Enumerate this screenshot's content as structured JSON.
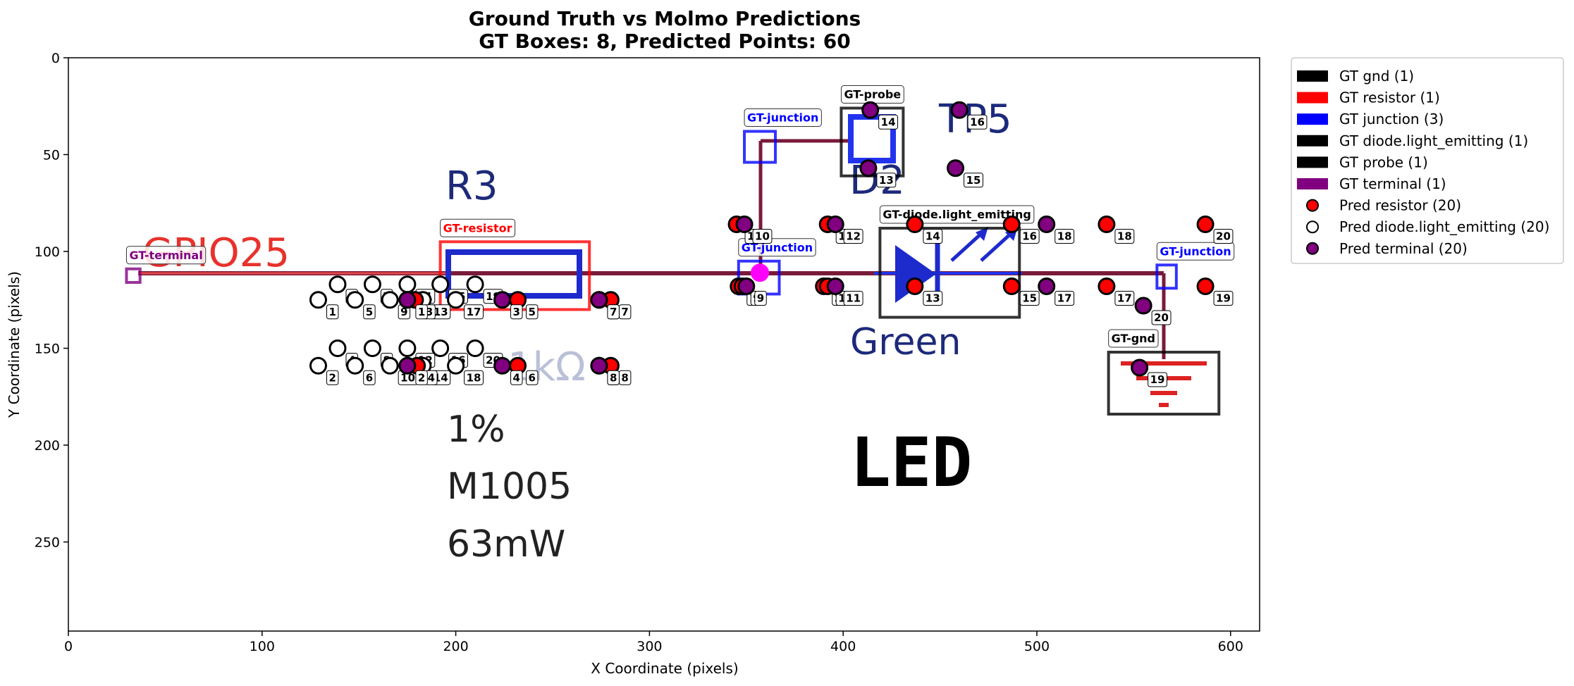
{
  "chart_data": {
    "type": "scatter",
    "title_line1": "Ground Truth vs Molmo Predictions",
    "title_line2": "GT Boxes: 8, Predicted Points: 60",
    "xlabel": "X Coordinate (pixels)",
    "ylabel": "Y Coordinate (pixels)",
    "xlim": [
      0,
      615
    ],
    "ylim": [
      296,
      0
    ],
    "xticks": [
      0,
      100,
      200,
      300,
      400,
      500,
      600
    ],
    "yticks": [
      0,
      50,
      100,
      150,
      200,
      250
    ],
    "legend_position": "outside top-right",
    "background_image_text": {
      "r3": "R3",
      "gpio": "GPIO25",
      "value": "1%",
      "package": "M1005",
      "power": "63mW",
      "d2": "D2",
      "tp5": "TP5",
      "color": "Green",
      "led": "LED",
      "partial": "1kΩ"
    },
    "gt_boxes": [
      {
        "label": "GT-terminal",
        "class": "terminal",
        "color": "#800080",
        "x1": 30,
        "y1": 109,
        "x2": 37,
        "y2": 116
      },
      {
        "label": "GT-resistor",
        "class": "resistor",
        "color": "#ff0000",
        "x1": 192,
        "y1": 95,
        "x2": 269,
        "y2": 130
      },
      {
        "label": "GT-junction",
        "class": "junction",
        "color": "#0000ff",
        "x1": 349,
        "y1": 38,
        "x2": 365,
        "y2": 54
      },
      {
        "label": "GT-probe",
        "class": "probe",
        "color": "#000000",
        "x1": 399,
        "y1": 26,
        "x2": 431,
        "y2": 61
      },
      {
        "label": "GT-junction",
        "class": "junction",
        "color": "#0000ff",
        "x1": 346,
        "y1": 105,
        "x2": 367,
        "y2": 122
      },
      {
        "label": "GT-diode.light_emitting",
        "class": "diode.light_emitting",
        "color": "#000000",
        "x1": 419,
        "y1": 88,
        "x2": 491,
        "y2": 134
      },
      {
        "label": "GT-junction",
        "class": "junction",
        "color": "#0000ff",
        "x1": 562,
        "y1": 107,
        "x2": 572,
        "y2": 119
      },
      {
        "label": "GT-gnd",
        "class": "gnd",
        "color": "#000000",
        "x1": 537,
        "y1": 152,
        "x2": 594,
        "y2": 184
      }
    ],
    "pred_resistor": [
      {
        "n": 1,
        "x": 346,
        "y": 118
      },
      {
        "n": 2,
        "x": 390,
        "y": 118
      },
      {
        "n": 3,
        "x": 179,
        "y": 125
      },
      {
        "n": 4,
        "x": 180,
        "y": 159
      },
      {
        "n": 5,
        "x": 232,
        "y": 125
      },
      {
        "n": 6,
        "x": 232,
        "y": 159
      },
      {
        "n": 7,
        "x": 280,
        "y": 125
      },
      {
        "n": 8,
        "x": 280,
        "y": 159
      },
      {
        "n": 9,
        "x": 348,
        "y": 118
      },
      {
        "n": 10,
        "x": 345,
        "y": 86
      },
      {
        "n": 11,
        "x": 392,
        "y": 118
      },
      {
        "n": 12,
        "x": 392,
        "y": 86
      },
      {
        "n": 13,
        "x": 437,
        "y": 118
      },
      {
        "n": 14,
        "x": 437,
        "y": 86
      },
      {
        "n": 15,
        "x": 487,
        "y": 118
      },
      {
        "n": 16,
        "x": 487,
        "y": 86
      },
      {
        "n": 17,
        "x": 536,
        "y": 118
      },
      {
        "n": 18,
        "x": 536,
        "y": 86
      },
      {
        "n": 19,
        "x": 587,
        "y": 118
      },
      {
        "n": 20,
        "x": 587,
        "y": 86
      }
    ],
    "pred_diode_light_emitting": [
      {
        "n": 1,
        "x": 129,
        "y": 125
      },
      {
        "n": 2,
        "x": 129,
        "y": 159
      },
      {
        "n": 3,
        "x": 139,
        "y": 117
      },
      {
        "n": 4,
        "x": 139,
        "y": 150
      },
      {
        "n": 5,
        "x": 148,
        "y": 125
      },
      {
        "n": 6,
        "x": 148,
        "y": 159
      },
      {
        "n": 7,
        "x": 157,
        "y": 117
      },
      {
        "n": 8,
        "x": 157,
        "y": 150
      },
      {
        "n": 9,
        "x": 166,
        "y": 125
      },
      {
        "n": 10,
        "x": 166,
        "y": 159
      },
      {
        "n": 11,
        "x": 175,
        "y": 117
      },
      {
        "n": 12,
        "x": 175,
        "y": 150
      },
      {
        "n": 13,
        "x": 183,
        "y": 125
      },
      {
        "n": 14,
        "x": 183,
        "y": 159
      },
      {
        "n": 15,
        "x": 192,
        "y": 117
      },
      {
        "n": 16,
        "x": 192,
        "y": 150
      },
      {
        "n": 17,
        "x": 200,
        "y": 125
      },
      {
        "n": 18,
        "x": 200,
        "y": 159
      },
      {
        "n": 19,
        "x": 210,
        "y": 117
      },
      {
        "n": 20,
        "x": 210,
        "y": 150
      }
    ],
    "pred_terminal": [
      {
        "n": 1,
        "x": 175,
        "y": 125
      },
      {
        "n": 2,
        "x": 175,
        "y": 159
      },
      {
        "n": 3,
        "x": 224,
        "y": 125
      },
      {
        "n": 4,
        "x": 224,
        "y": 159
      },
      {
        "n": 5,
        "x": 274,
        "y": 125
      },
      {
        "n": 6,
        "x": 274,
        "y": 159
      },
      {
        "n": 7,
        "x": 274,
        "y": 125
      },
      {
        "n": 8,
        "x": 274,
        "y": 159
      },
      {
        "n": 9,
        "x": 350,
        "y": 118
      },
      {
        "n": 10,
        "x": 349,
        "y": 86
      },
      {
        "n": 11,
        "x": 396,
        "y": 118
      },
      {
        "n": 12,
        "x": 396,
        "y": 86
      },
      {
        "n": 13,
        "x": 413,
        "y": 57
      },
      {
        "n": 14,
        "x": 414,
        "y": 27
      },
      {
        "n": 15,
        "x": 458,
        "y": 57
      },
      {
        "n": 16,
        "x": 460,
        "y": 27
      },
      {
        "n": 17,
        "x": 505,
        "y": 118
      },
      {
        "n": 18,
        "x": 505,
        "y": 86
      },
      {
        "n": 19,
        "x": 553,
        "y": 160
      },
      {
        "n": 20,
        "x": 555,
        "y": 128
      }
    ],
    "junction_marker": {
      "x": 357,
      "y": 111,
      "color": "#ff00ff"
    },
    "legend": [
      {
        "label": "GT gnd (1)",
        "kind": "box",
        "color": "#000000"
      },
      {
        "label": "GT resistor (1)",
        "kind": "box",
        "color": "#ff0000"
      },
      {
        "label": "GT junction (3)",
        "kind": "box",
        "color": "#0000ff"
      },
      {
        "label": "GT diode.light_emitting (1)",
        "kind": "box",
        "color": "#000000"
      },
      {
        "label": "GT probe (1)",
        "kind": "box",
        "color": "#000000"
      },
      {
        "label": "GT terminal (1)",
        "kind": "box",
        "color": "#800080"
      },
      {
        "label": "Pred resistor (20)",
        "kind": "point",
        "color": "#ff0000"
      },
      {
        "label": "Pred diode.light_emitting (20)",
        "kind": "point",
        "color": "#ffffff"
      },
      {
        "label": "Pred terminal (20)",
        "kind": "point",
        "color": "#800080"
      }
    ]
  }
}
